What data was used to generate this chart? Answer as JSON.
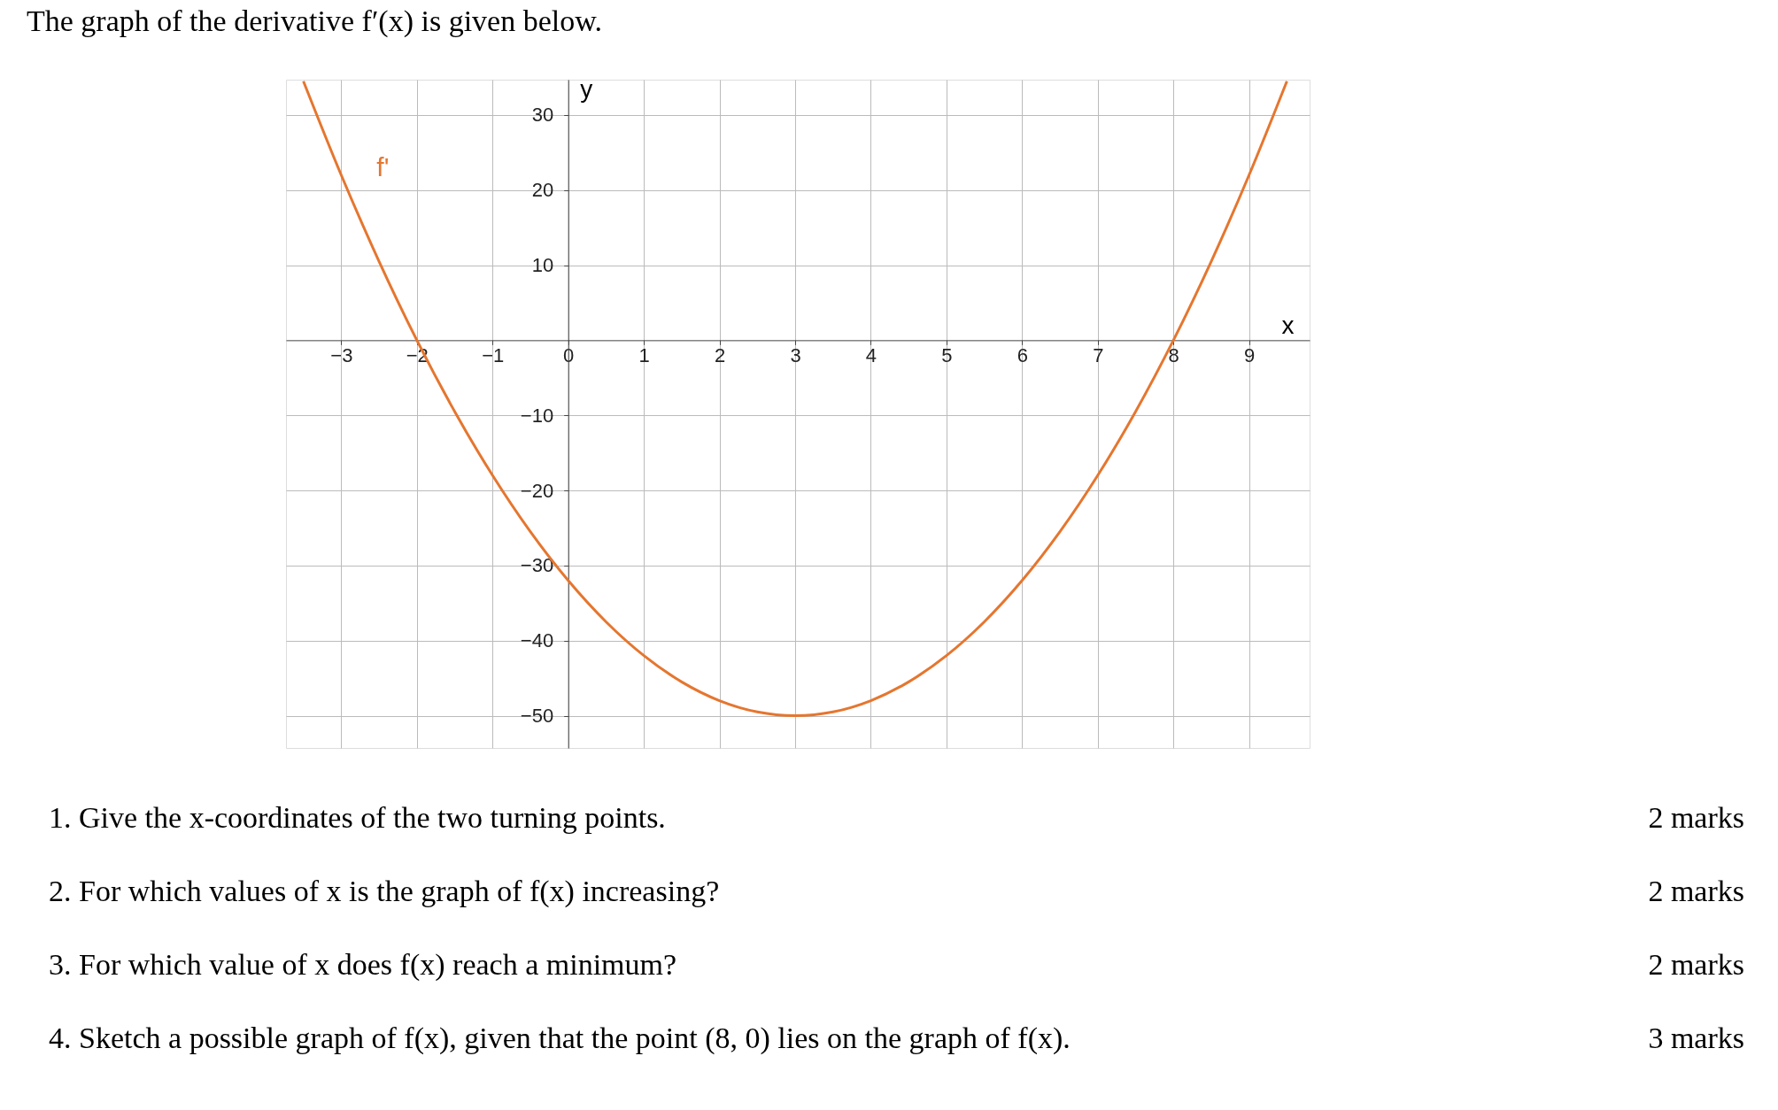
{
  "chart_data": {
    "type": "line",
    "title": "The graph of the derivative f′(x) is given below.",
    "xlabel": "x",
    "ylabel": "y",
    "x": [
      -3.5,
      -3,
      -2.5,
      -2,
      -1.5,
      -1,
      -0.5,
      0,
      0.5,
      1,
      1.5,
      2,
      2.5,
      3,
      3.5,
      4,
      4.5,
      5,
      5.5,
      6,
      6.5,
      7,
      7.5,
      8,
      8.5,
      9,
      9.5
    ],
    "series": [
      {
        "name": "f'",
        "color": "#e5762f",
        "values": [
          34.5,
          22,
          10.5,
          0,
          -9.5,
          -18,
          -25.5,
          -32,
          -37.5,
          -42,
          -45.5,
          -48,
          -49.5,
          -50,
          -49.5,
          -48,
          -45.5,
          -42,
          -37.5,
          -32,
          -25.5,
          -18,
          -9.5,
          0,
          10.5,
          22,
          34.5
        ]
      }
    ],
    "xlim": [
      -3.73,
      9.8
    ],
    "ylim": [
      -54.3,
      34.7
    ],
    "xticks": [
      {
        "value": -3,
        "label": "−3"
      },
      {
        "value": -2,
        "label": "−2"
      },
      {
        "value": -1,
        "label": "−1"
      },
      0,
      1,
      2,
      3,
      4,
      5,
      6,
      7,
      8,
      9
    ],
    "yticks": [
      {
        "value": -50,
        "label": "−50"
      },
      {
        "value": -40,
        "label": "−40"
      },
      {
        "value": -30,
        "label": "−30"
      },
      {
        "value": -20,
        "label": "−20"
      },
      {
        "value": -10,
        "label": "−10"
      },
      10,
      20,
      30
    ],
    "grid": true,
    "marker": "none",
    "line_style": "solid",
    "annotations": [
      "1.  Give the x-coordinates of the two turning points.",
      "2 marks",
      "2.  For which values of x is the graph of f(x) increasing?",
      "2 marks",
      "3.  For which value of x does f(x) reach a minimum?",
      "2 marks",
      "4.  Sketch a possible graph of f(x), given that the point (8, 0) lies on the graph of f(x).",
      "3 marks"
    ]
  }
}
